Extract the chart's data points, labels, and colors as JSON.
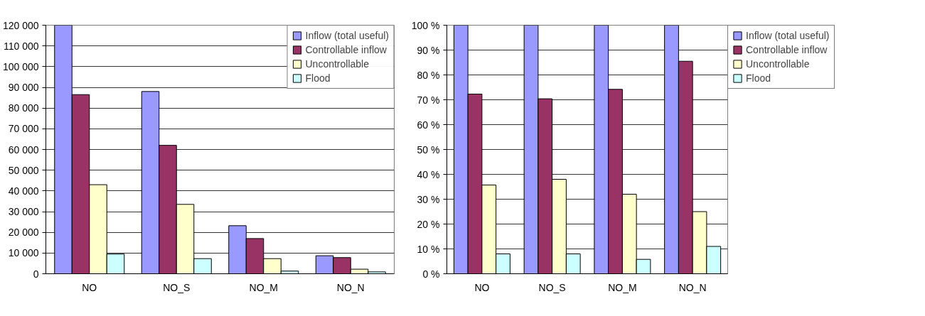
{
  "chart_data": [
    {
      "type": "bar",
      "categories": [
        "NO",
        "NO_S",
        "NO_M",
        "NO_N"
      ],
      "series": [
        {
          "name": "Inflow (total useful)",
          "color": "#9999ff",
          "values": [
            120000,
            88000,
            23200,
            8700
          ]
        },
        {
          "name": "Controllable inflow",
          "color": "#993366",
          "values": [
            86500,
            62000,
            17000,
            7800
          ]
        },
        {
          "name": "Uncontrollable",
          "color": "#ffffcc",
          "values": [
            43000,
            33500,
            7300,
            2200
          ]
        },
        {
          "name": "Flood",
          "color": "#ccffff",
          "values": [
            9500,
            7300,
            1300,
            900
          ]
        }
      ],
      "ylim": [
        0,
        120000
      ],
      "yticks": [
        {
          "value": 0,
          "label": "0"
        },
        {
          "value": 10000,
          "label": "10 000"
        },
        {
          "value": 20000,
          "label": "20 000"
        },
        {
          "value": 30000,
          "label": "30 000"
        },
        {
          "value": 40000,
          "label": "40 000"
        },
        {
          "value": 50000,
          "label": "50 000"
        },
        {
          "value": 60000,
          "label": "60 000"
        },
        {
          "value": 70000,
          "label": "70 000"
        },
        {
          "value": 80000,
          "label": "80 000"
        },
        {
          "value": 90000,
          "label": "90 000"
        },
        {
          "value": 100000,
          "label": "100 000"
        },
        {
          "value": 110000,
          "label": "110 000"
        },
        {
          "value": 120000,
          "label": "120 000"
        }
      ],
      "grid": "y",
      "legend": "top right"
    },
    {
      "type": "bar",
      "categories": [
        "NO",
        "NO_S",
        "NO_M",
        "NO_N"
      ],
      "series": [
        {
          "name": "Inflow (total useful)",
          "color": "#9999ff",
          "values": [
            100,
            100,
            100,
            100
          ]
        },
        {
          "name": "Controllable inflow",
          "color": "#993366",
          "values": [
            72.3,
            70.4,
            74.2,
            85.5
          ]
        },
        {
          "name": "Uncontrollable",
          "color": "#ffffcc",
          "values": [
            35.7,
            38,
            32,
            25
          ]
        },
        {
          "name": "Flood",
          "color": "#ccffff",
          "values": [
            8,
            8,
            5.8,
            11
          ]
        }
      ],
      "ylim": [
        0,
        100
      ],
      "yticks": [
        {
          "value": 0,
          "label": "0 %"
        },
        {
          "value": 10,
          "label": "10 %"
        },
        {
          "value": 20,
          "label": "20 %"
        },
        {
          "value": 30,
          "label": "30 %"
        },
        {
          "value": 40,
          "label": "40 %"
        },
        {
          "value": 50,
          "label": "50 %"
        },
        {
          "value": 60,
          "label": "60 %"
        },
        {
          "value": 70,
          "label": "70 %"
        },
        {
          "value": 80,
          "label": "80 %"
        },
        {
          "value": 90,
          "label": "90 %"
        },
        {
          "value": 100,
          "label": "100 %"
        }
      ],
      "grid": "y",
      "legend": "right"
    }
  ]
}
